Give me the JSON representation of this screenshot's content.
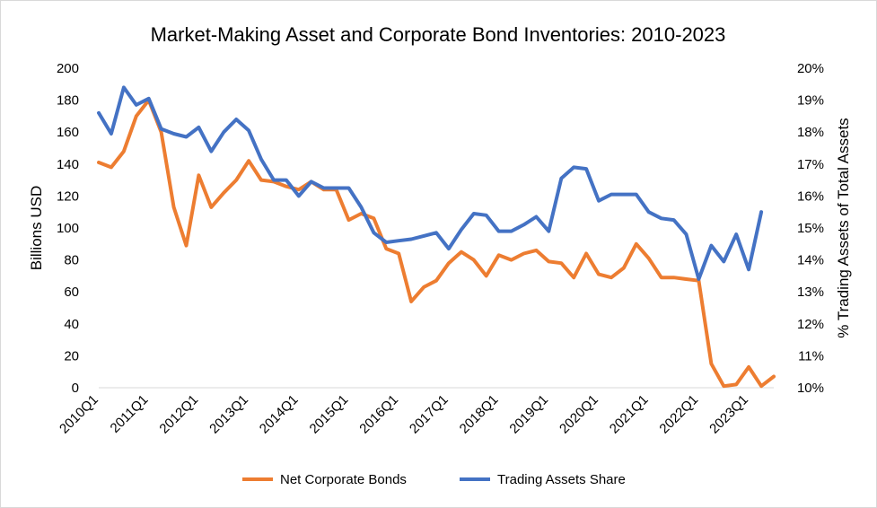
{
  "chart_data": {
    "type": "line",
    "title": "Market-Making Asset and Corporate Bond Inventories: 2010-2023",
    "ylabel_left": "Billions USD",
    "ylabel_right": "% Trading Assets of Total Assets",
    "ylim_left": [
      0,
      200
    ],
    "yticks_left": [
      "0",
      "20",
      "40",
      "60",
      "80",
      "100",
      "120",
      "140",
      "160",
      "180",
      "200"
    ],
    "ylim_right": [
      10,
      20
    ],
    "yticks_right": [
      "10%",
      "11%",
      "12%",
      "13%",
      "14%",
      "15%",
      "16%",
      "17%",
      "18%",
      "19%",
      "20%"
    ],
    "x_tick_labels": [
      "2010Q1",
      "2011Q1",
      "2012Q1",
      "2013Q1",
      "2014Q1",
      "2015Q1",
      "2016Q1",
      "2017Q1",
      "2018Q1",
      "2019Q1",
      "2020Q1",
      "2021Q1",
      "2022Q1",
      "2023Q1"
    ],
    "grid": false,
    "legend_position": "bottom",
    "colors": {
      "net_corporate_bonds": "#ED7D31",
      "trading_assets_share": "#4472C4"
    },
    "series": [
      {
        "name": "Net Corporate Bonds",
        "axis": "left",
        "values": [
          141,
          138,
          148,
          170,
          180,
          160,
          113,
          89,
          133,
          113,
          122,
          130,
          142,
          130,
          129,
          126,
          124,
          129,
          124,
          124,
          105,
          109,
          106,
          87,
          84,
          54,
          63,
          67,
          78,
          85,
          80,
          70,
          83,
          80,
          84,
          86,
          79,
          78,
          69,
          84,
          71,
          69,
          75,
          90,
          81,
          69,
          69,
          68,
          67,
          15,
          1,
          2,
          13,
          1,
          7
        ]
      },
      {
        "name": "Trading Assets Share",
        "axis": "right",
        "values": [
          18.6,
          17.95,
          19.4,
          18.85,
          19.05,
          18.1,
          17.95,
          17.85,
          18.15,
          17.4,
          18.0,
          18.4,
          18.05,
          17.15,
          16.5,
          16.5,
          16.0,
          16.45,
          16.25,
          16.25,
          16.25,
          15.65,
          14.85,
          14.55,
          14.6,
          14.65,
          14.75,
          14.85,
          14.35,
          14.95,
          15.45,
          15.4,
          14.9,
          14.9,
          15.1,
          15.35,
          14.9,
          16.55,
          16.9,
          16.85,
          15.85,
          16.05,
          16.05,
          16.05,
          15.5,
          15.3,
          15.25,
          14.8,
          13.4,
          14.45,
          13.95,
          14.8,
          13.7,
          15.5
        ]
      }
    ]
  }
}
